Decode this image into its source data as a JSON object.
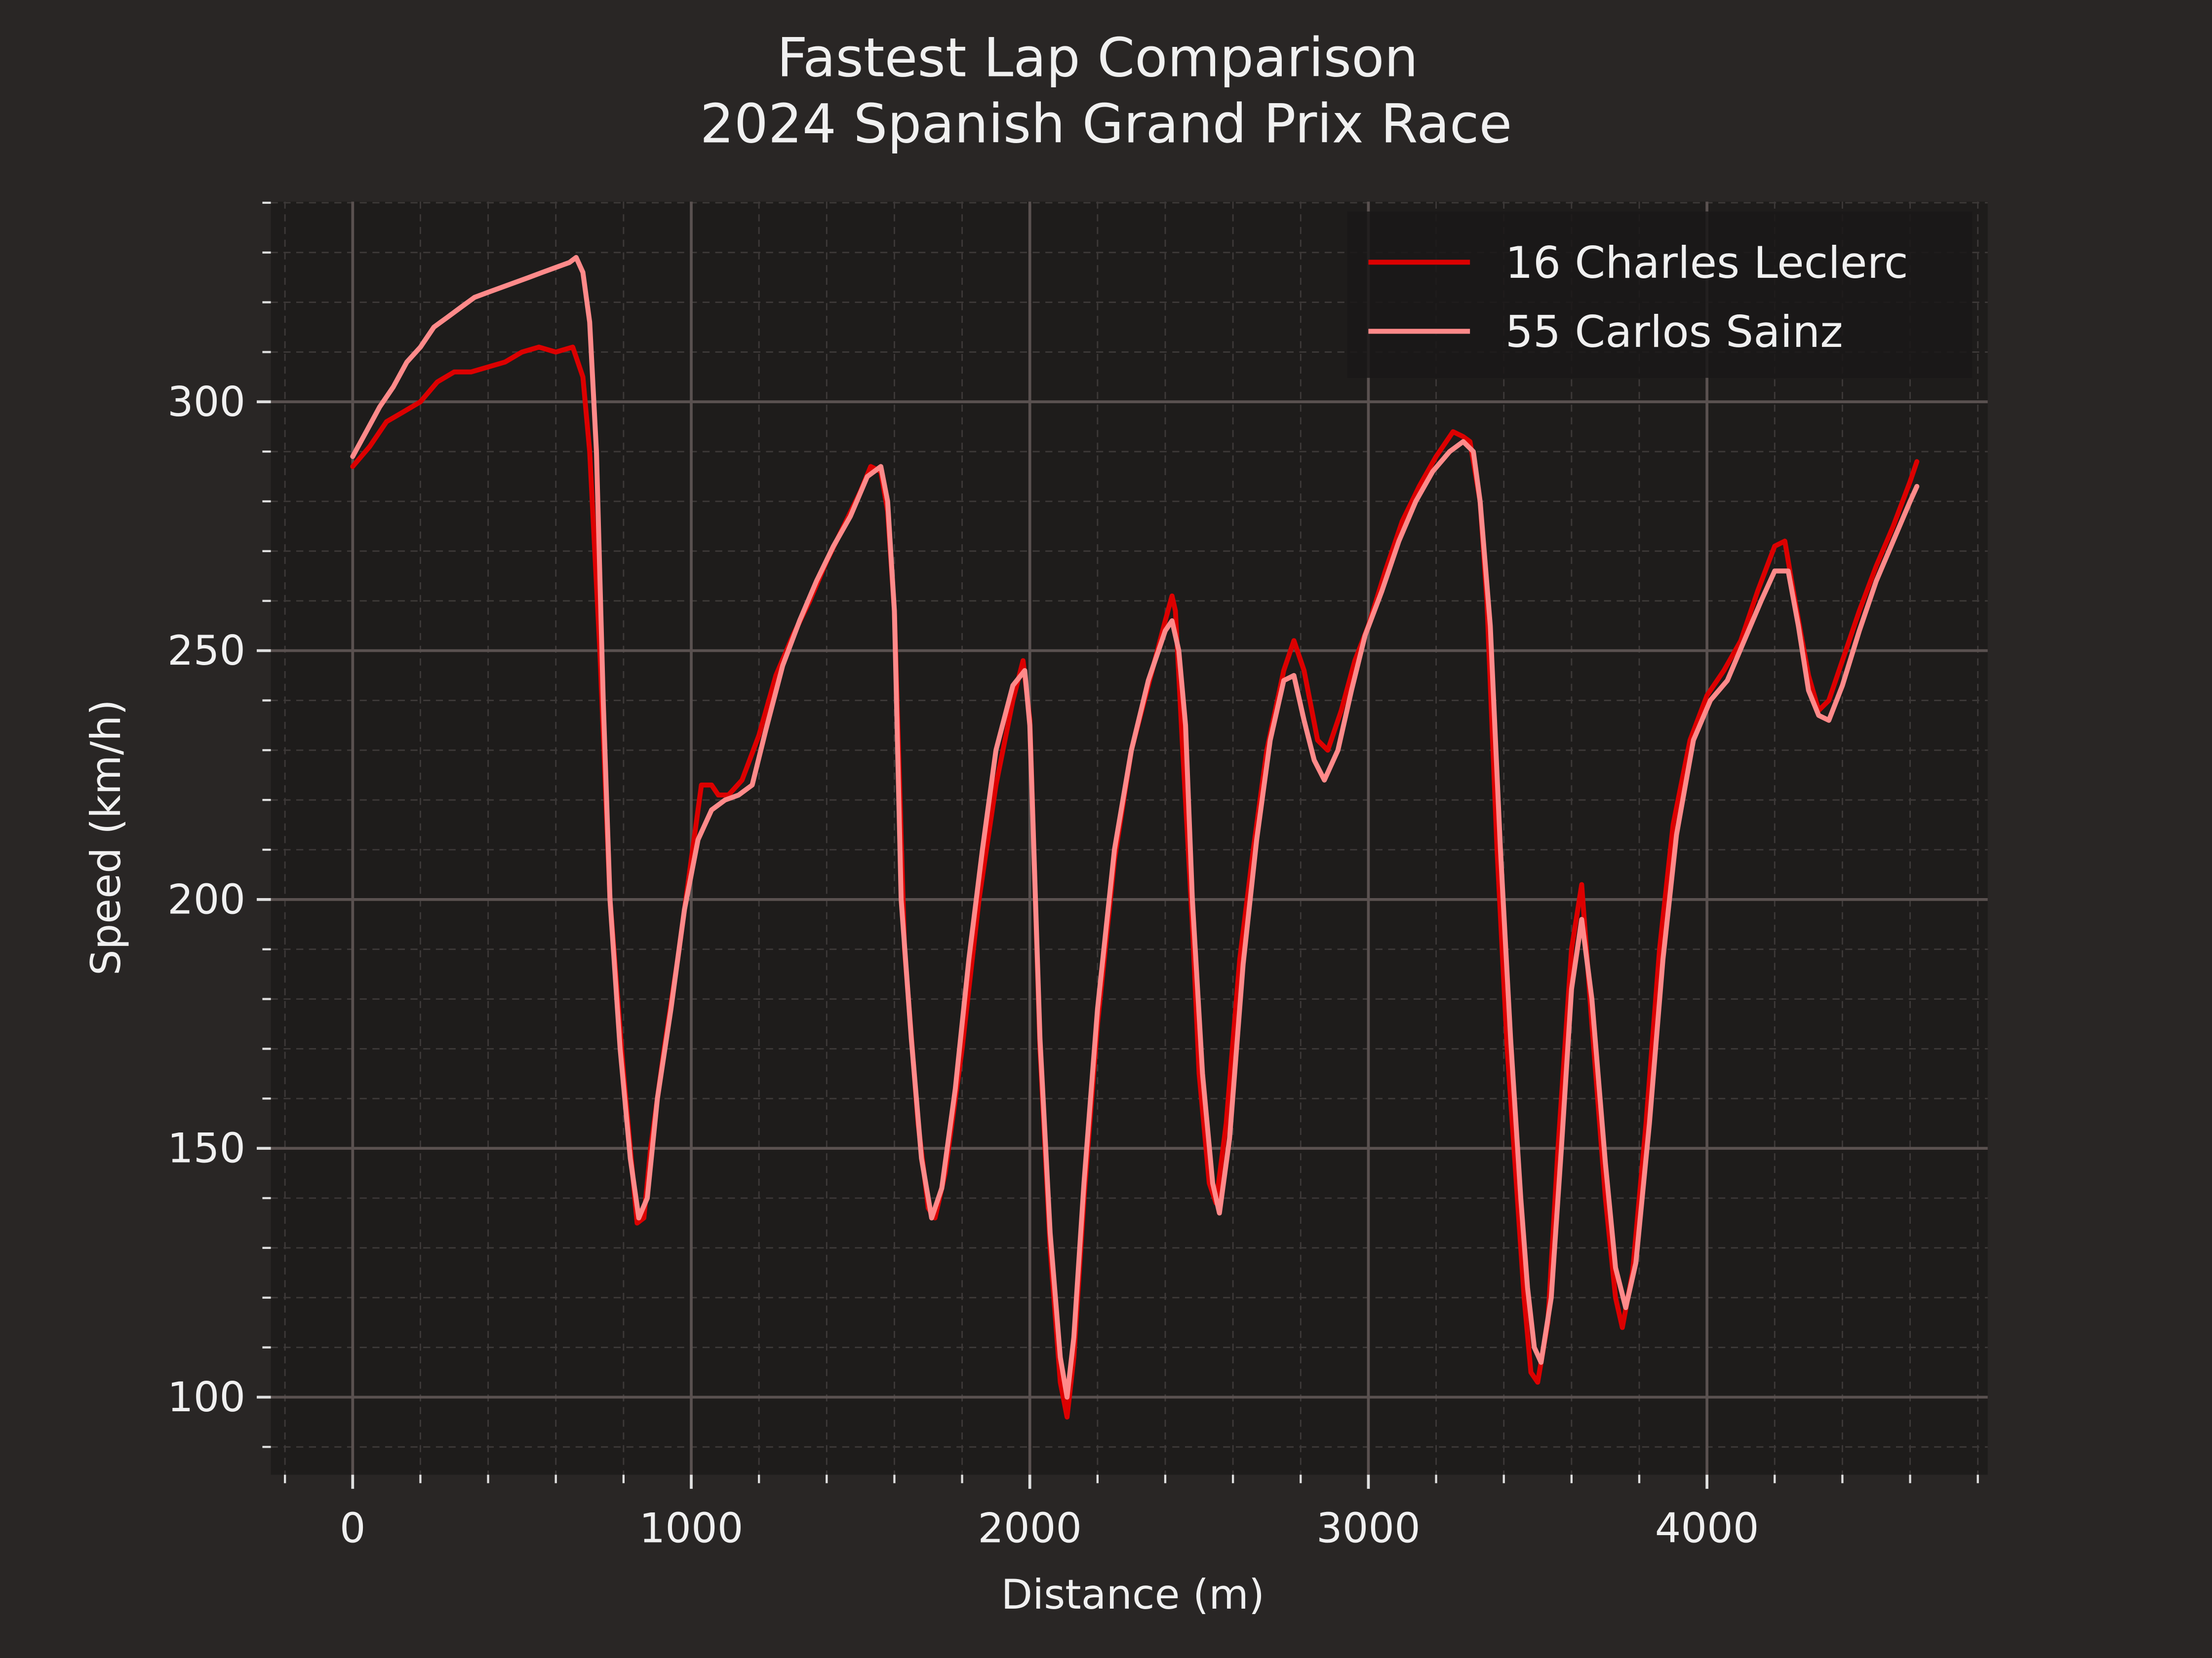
{
  "chart_data": {
    "type": "line",
    "title": "Fastest Lap Comparison\n2024 Spanish Grand Prix Race",
    "title_lines": [
      "Fastest Lap Comparison",
      "2024 Spanish Grand Prix Race"
    ],
    "xlabel": "Distance (m)",
    "ylabel": "Speed (km/h)",
    "xlim": [
      -200,
      4800
    ],
    "ylim": [
      86,
      341
    ],
    "x_ticks": [
      0,
      1000,
      2000,
      3000,
      4000
    ],
    "y_ticks": [
      100,
      150,
      200,
      250,
      300
    ],
    "x_tick_labels": [
      "0",
      "1000",
      "2000",
      "3000",
      "4000"
    ],
    "y_tick_labels": [
      "100",
      "150",
      "200",
      "250",
      "300"
    ],
    "grid": true,
    "legend_position": "top-right",
    "colors": {
      "background": "#292625",
      "plot_background": "#1e1c1b",
      "major_grid": "#5a5150",
      "minor_grid": "#3d3938",
      "text": "#f0f0f0"
    },
    "series": [
      {
        "name": "16 Charles Leclerc",
        "color": "#dc0000",
        "points": [
          [
            0,
            287
          ],
          [
            50,
            291
          ],
          [
            100,
            296
          ],
          [
            150,
            298
          ],
          [
            200,
            300
          ],
          [
            250,
            304
          ],
          [
            300,
            306
          ],
          [
            350,
            306
          ],
          [
            400,
            307
          ],
          [
            450,
            308
          ],
          [
            500,
            310
          ],
          [
            550,
            311
          ],
          [
            600,
            310
          ],
          [
            650,
            311
          ],
          [
            680,
            305
          ],
          [
            700,
            290
          ],
          [
            730,
            250
          ],
          [
            760,
            200
          ],
          [
            800,
            165
          ],
          [
            840,
            135
          ],
          [
            860,
            136
          ],
          [
            880,
            150
          ],
          [
            920,
            170
          ],
          [
            960,
            188
          ],
          [
            1000,
            208
          ],
          [
            1030,
            223
          ],
          [
            1060,
            223
          ],
          [
            1080,
            221
          ],
          [
            1110,
            221
          ],
          [
            1150,
            224
          ],
          [
            1200,
            233
          ],
          [
            1250,
            245
          ],
          [
            1300,
            253
          ],
          [
            1350,
            260
          ],
          [
            1400,
            268
          ],
          [
            1450,
            275
          ],
          [
            1500,
            282
          ],
          [
            1530,
            287
          ],
          [
            1560,
            286
          ],
          [
            1580,
            278
          ],
          [
            1600,
            258
          ],
          [
            1630,
            190
          ],
          [
            1670,
            155
          ],
          [
            1700,
            138
          ],
          [
            1720,
            136
          ],
          [
            1750,
            145
          ],
          [
            1800,
            170
          ],
          [
            1850,
            200
          ],
          [
            1900,
            223
          ],
          [
            1950,
            240
          ],
          [
            1980,
            248
          ],
          [
            2000,
            236
          ],
          [
            2030,
            170
          ],
          [
            2060,
            130
          ],
          [
            2090,
            103
          ],
          [
            2110,
            96
          ],
          [
            2130,
            108
          ],
          [
            2160,
            140
          ],
          [
            2200,
            175
          ],
          [
            2250,
            208
          ],
          [
            2300,
            230
          ],
          [
            2350,
            243
          ],
          [
            2400,
            256
          ],
          [
            2420,
            261
          ],
          [
            2430,
            258
          ],
          [
            2450,
            232
          ],
          [
            2480,
            195
          ],
          [
            2500,
            165
          ],
          [
            2530,
            143
          ],
          [
            2550,
            139
          ],
          [
            2580,
            155
          ],
          [
            2620,
            188
          ],
          [
            2660,
            210
          ],
          [
            2700,
            230
          ],
          [
            2750,
            246
          ],
          [
            2780,
            252
          ],
          [
            2810,
            246
          ],
          [
            2850,
            232
          ],
          [
            2880,
            230
          ],
          [
            2920,
            238
          ],
          [
            2960,
            248
          ],
          [
            3000,
            255
          ],
          [
            3050,
            266
          ],
          [
            3100,
            276
          ],
          [
            3150,
            283
          ],
          [
            3200,
            289
          ],
          [
            3250,
            294
          ],
          [
            3280,
            293
          ],
          [
            3300,
            292
          ],
          [
            3330,
            280
          ],
          [
            3350,
            260
          ],
          [
            3380,
            210
          ],
          [
            3410,
            170
          ],
          [
            3440,
            140
          ],
          [
            3460,
            120
          ],
          [
            3480,
            105
          ],
          [
            3500,
            103
          ],
          [
            3530,
            115
          ],
          [
            3560,
            150
          ],
          [
            3600,
            190
          ],
          [
            3630,
            203
          ],
          [
            3660,
            175
          ],
          [
            3700,
            140
          ],
          [
            3730,
            120
          ],
          [
            3750,
            114
          ],
          [
            3780,
            125
          ],
          [
            3820,
            155
          ],
          [
            3860,
            190
          ],
          [
            3900,
            215
          ],
          [
            3950,
            232
          ],
          [
            4000,
            241
          ],
          [
            4050,
            246
          ],
          [
            4100,
            252
          ],
          [
            4150,
            262
          ],
          [
            4200,
            271
          ],
          [
            4230,
            272
          ],
          [
            4260,
            260
          ],
          [
            4300,
            245
          ],
          [
            4330,
            238
          ],
          [
            4360,
            240
          ],
          [
            4400,
            248
          ],
          [
            4450,
            258
          ],
          [
            4500,
            267
          ],
          [
            4550,
            275
          ],
          [
            4600,
            284
          ],
          [
            4620,
            288
          ]
        ]
      },
      {
        "name": "55 Carlos Sainz",
        "color": "#ff8a8a",
        "points": [
          [
            0,
            289
          ],
          [
            40,
            294
          ],
          [
            80,
            299
          ],
          [
            120,
            303
          ],
          [
            160,
            308
          ],
          [
            200,
            311
          ],
          [
            240,
            315
          ],
          [
            280,
            317
          ],
          [
            320,
            319
          ],
          [
            360,
            321
          ],
          [
            400,
            322
          ],
          [
            440,
            323
          ],
          [
            480,
            324
          ],
          [
            520,
            325
          ],
          [
            560,
            326
          ],
          [
            600,
            327
          ],
          [
            640,
            328
          ],
          [
            660,
            329
          ],
          [
            680,
            326
          ],
          [
            700,
            316
          ],
          [
            720,
            290
          ],
          [
            740,
            240
          ],
          [
            760,
            200
          ],
          [
            790,
            170
          ],
          [
            820,
            148
          ],
          [
            845,
            136
          ],
          [
            870,
            140
          ],
          [
            900,
            160
          ],
          [
            940,
            178
          ],
          [
            980,
            198
          ],
          [
            1020,
            212
          ],
          [
            1060,
            218
          ],
          [
            1100,
            220
          ],
          [
            1140,
            221
          ],
          [
            1180,
            223
          ],
          [
            1220,
            234
          ],
          [
            1270,
            247
          ],
          [
            1320,
            256
          ],
          [
            1370,
            264
          ],
          [
            1420,
            271
          ],
          [
            1470,
            277
          ],
          [
            1520,
            285
          ],
          [
            1560,
            287
          ],
          [
            1580,
            280
          ],
          [
            1600,
            258
          ],
          [
            1620,
            200
          ],
          [
            1650,
            172
          ],
          [
            1680,
            148
          ],
          [
            1710,
            136
          ],
          [
            1740,
            142
          ],
          [
            1780,
            162
          ],
          [
            1820,
            188
          ],
          [
            1860,
            210
          ],
          [
            1900,
            230
          ],
          [
            1950,
            243
          ],
          [
            1985,
            246
          ],
          [
            2000,
            235
          ],
          [
            2030,
            172
          ],
          [
            2060,
            133
          ],
          [
            2090,
            108
          ],
          [
            2110,
            100
          ],
          [
            2130,
            112
          ],
          [
            2160,
            143
          ],
          [
            2200,
            178
          ],
          [
            2250,
            210
          ],
          [
            2300,
            230
          ],
          [
            2350,
            244
          ],
          [
            2400,
            254
          ],
          [
            2420,
            256
          ],
          [
            2440,
            250
          ],
          [
            2460,
            235
          ],
          [
            2480,
            200
          ],
          [
            2510,
            165
          ],
          [
            2540,
            143
          ],
          [
            2560,
            137
          ],
          [
            2590,
            152
          ],
          [
            2630,
            187
          ],
          [
            2670,
            212
          ],
          [
            2710,
            232
          ],
          [
            2750,
            244
          ],
          [
            2780,
            245
          ],
          [
            2810,
            236
          ],
          [
            2840,
            228
          ],
          [
            2870,
            224
          ],
          [
            2910,
            230
          ],
          [
            2950,
            242
          ],
          [
            2990,
            253
          ],
          [
            3040,
            262
          ],
          [
            3090,
            272
          ],
          [
            3140,
            280
          ],
          [
            3190,
            286
          ],
          [
            3240,
            290
          ],
          [
            3280,
            292
          ],
          [
            3310,
            290
          ],
          [
            3330,
            280
          ],
          [
            3360,
            255
          ],
          [
            3390,
            210
          ],
          [
            3420,
            172
          ],
          [
            3450,
            140
          ],
          [
            3470,
            122
          ],
          [
            3490,
            110
          ],
          [
            3510,
            107
          ],
          [
            3540,
            120
          ],
          [
            3570,
            150
          ],
          [
            3600,
            182
          ],
          [
            3630,
            196
          ],
          [
            3660,
            180
          ],
          [
            3700,
            147
          ],
          [
            3730,
            126
          ],
          [
            3760,
            118
          ],
          [
            3790,
            127
          ],
          [
            3830,
            155
          ],
          [
            3870,
            188
          ],
          [
            3910,
            213
          ],
          [
            3960,
            232
          ],
          [
            4010,
            240
          ],
          [
            4060,
            244
          ],
          [
            4110,
            252
          ],
          [
            4160,
            260
          ],
          [
            4200,
            266
          ],
          [
            4240,
            266
          ],
          [
            4270,
            255
          ],
          [
            4300,
            242
          ],
          [
            4330,
            237
          ],
          [
            4360,
            236
          ],
          [
            4400,
            243
          ],
          [
            4450,
            254
          ],
          [
            4500,
            264
          ],
          [
            4550,
            272
          ],
          [
            4600,
            280
          ],
          [
            4620,
            283
          ]
        ]
      }
    ]
  }
}
